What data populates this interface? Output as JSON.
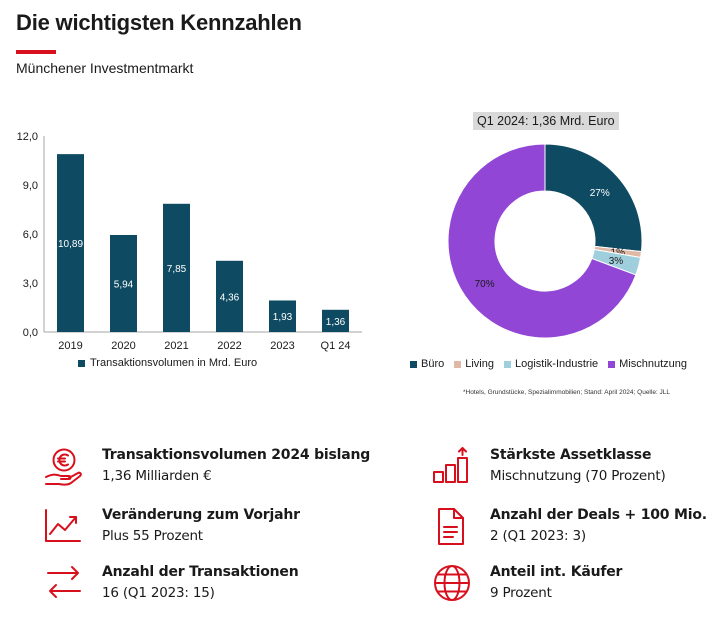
{
  "header": {
    "title": "Die wichtigsten Kennzahlen",
    "subtitle": "Münchener Investmentmarkt"
  },
  "colors": {
    "brand_red": "#d8101d",
    "bar": "#0e4a62",
    "buero": "#0e4a62",
    "living": "#e0b9a6",
    "logistik": "#9fcfdc",
    "misch": "#9146d6"
  },
  "chart_data": [
    {
      "type": "bar",
      "categories": [
        "2019",
        "2020",
        "2021",
        "2022",
        "2023",
        "Q1 24"
      ],
      "values": [
        10.89,
        5.94,
        7.85,
        4.36,
        1.93,
        1.36
      ],
      "value_labels": [
        "10,89",
        "5,94",
        "7,85",
        "4,36",
        "1,93",
        "1,36"
      ],
      "yticks": [
        "0,0",
        "3,0",
        "6,0",
        "9,0",
        "12,0"
      ],
      "ylim": [
        0,
        12
      ],
      "legend": "Transaktionsvolumen in Mrd. Euro",
      "legend_position": "bottom"
    },
    {
      "type": "pie",
      "title": "Q1 2024: 1,36 Mrd. Euro",
      "labels": [
        "Büro",
        "Living",
        "Logistik-Industrie",
        "Mischnutzung"
      ],
      "values": [
        27,
        1,
        3,
        70
      ],
      "value_labels": [
        "27%",
        "1%",
        "3%",
        "70%"
      ],
      "donut": true,
      "legend_position": "bottom",
      "footnote": "*Hotels, Grundstücke, Spezialimmobilien; Stand: April 2024; Quelle: JLL"
    }
  ],
  "kpis": [
    {
      "icon": "euro-hand-icon",
      "label": "Transaktionsvolumen 2024 bislang",
      "value": "1,36 Milliarden €"
    },
    {
      "icon": "trend-up-icon",
      "label": "Veränderung zum Vorjahr",
      "value": "Plus 55 Prozent"
    },
    {
      "icon": "exchange-arrows-icon",
      "label": "Anzahl der Transaktionen",
      "value": "16 (Q1 2023: 15)"
    },
    {
      "icon": "rising-bars-icon",
      "label": "Stärkste Assetklasse",
      "value": "Mischnutzung (70 Prozent)"
    },
    {
      "icon": "document-icon",
      "label": "Anzahl der Deals + 100 Mio.",
      "value": "2 (Q1 2023: 3)"
    },
    {
      "icon": "globe-icon",
      "label": "Anteil int. Käufer",
      "value": "9 Prozent"
    }
  ]
}
